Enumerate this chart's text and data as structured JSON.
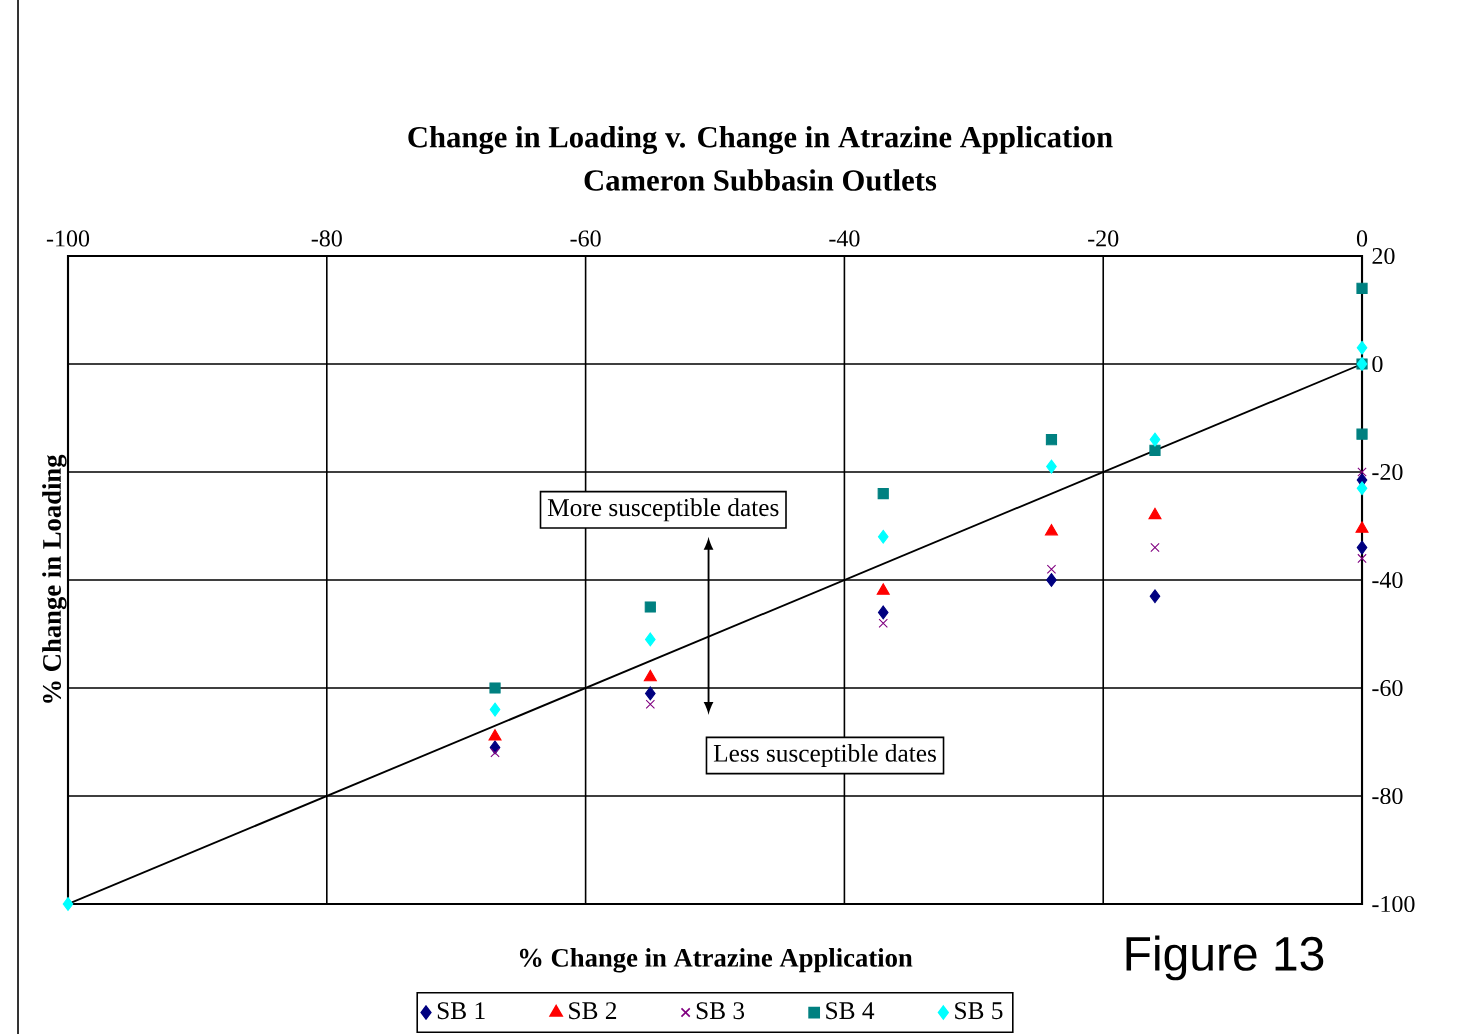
{
  "chart_data": {
    "type": "scatter",
    "title": "Change in Loading v. Change in Atrazine Application",
    "subtitle": "Cameron Subbasin Outlets",
    "xlabel": "% Change in Atrazine Application",
    "ylabel": "% Change in Loading",
    "annotations": [
      "More susceptible dates",
      "Less susceptible dates",
      "Figure 13"
    ],
    "xlim": [
      -100,
      0
    ],
    "xticks": [
      -100,
      -80,
      -60,
      -40,
      -20,
      0
    ],
    "ylim": [
      -100,
      20
    ],
    "yticks": [
      20,
      0,
      -20,
      -40,
      -60,
      -80,
      -100
    ],
    "grid": true,
    "legend": "bottom",
    "series": [
      {
        "name": "SB 1",
        "color": "#000080",
        "marker": "diamond",
        "x": [
          -67,
          -55,
          -37,
          -24,
          -16,
          0,
          0
        ],
        "values": [
          -71,
          -61,
          -46,
          -40,
          -43,
          -21.5,
          -34
        ]
      },
      {
        "name": "SB 2",
        "color": "#ff0000",
        "marker": "triangle",
        "x": [
          -67,
          -55,
          -37,
          -24,
          -16,
          0
        ],
        "values": [
          -69,
          -58,
          -42,
          -31,
          -28,
          -30.5
        ]
      },
      {
        "name": "SB 3",
        "color": "#800080",
        "marker": "cross",
        "x": [
          -67,
          -55,
          -37,
          -24,
          -16,
          0,
          0
        ],
        "values": [
          -72,
          -63,
          -48,
          -38,
          -34,
          -20,
          -36
        ]
      },
      {
        "name": "SB 4",
        "color": "#008080",
        "marker": "square",
        "x": [
          -67,
          -55,
          -37,
          -24,
          -16,
          0,
          0,
          0
        ],
        "values": [
          -60,
          -45,
          -24,
          -14,
          -16,
          14,
          0,
          -13
        ]
      },
      {
        "name": "SB 5",
        "color": "#00ffff",
        "marker": "diamond",
        "x": [
          -100,
          -67,
          -55,
          -37,
          -24,
          -16,
          0,
          0,
          0
        ],
        "values": [
          -100,
          -64,
          -51,
          -32,
          -19,
          -14,
          3,
          0,
          -23
        ]
      },
      {
        "type": "line",
        "color": "#000000",
        "marker": "none",
        "x": [
          -100,
          0
        ],
        "values": [
          -100,
          0
        ]
      }
    ]
  }
}
